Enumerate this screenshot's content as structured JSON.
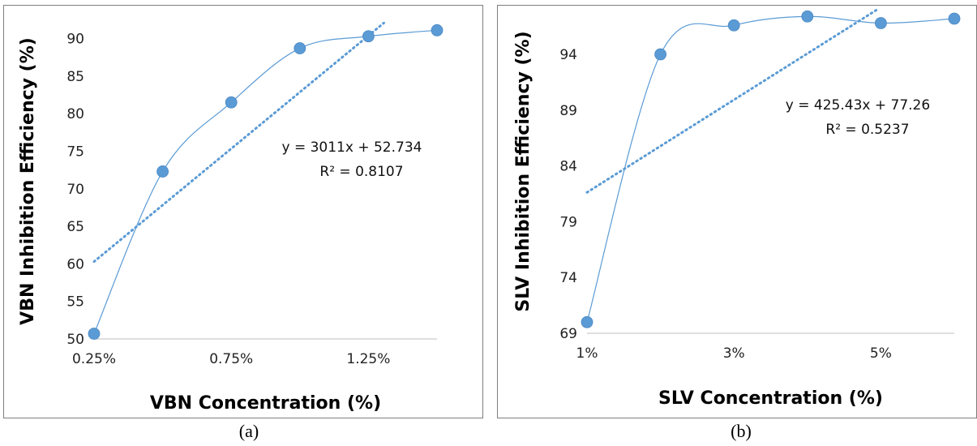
{
  "chart_data": [
    {
      "type": "scatter",
      "xlabel": "VBN Concentration (%)",
      "ylabel": "VBN Inhibition Efficiency (%)",
      "caption": "(a)",
      "x_tick_labels": [
        "0.25%",
        "0.75%",
        "1.25%"
      ],
      "y_ticks": [
        "50",
        "55",
        "60",
        "65",
        "70",
        "75",
        "80",
        "85",
        "90"
      ],
      "ylim": [
        50,
        92
      ],
      "xlim": [
        0.25,
        1.5
      ],
      "x": [
        0.25,
        0.5,
        0.75,
        1.0,
        1.25,
        1.5
      ],
      "y": [
        50.7,
        72.3,
        81.5,
        88.7,
        90.3,
        91.1
      ],
      "trendline": {
        "type": "linear",
        "style": "dotted",
        "slope": 3011,
        "intercept": 52.734,
        "equation": "y = 3011x + 52.734",
        "r2": "R² = 0.8107"
      },
      "marker_color": "#5b9bd5",
      "line_color": "#5b9bd5"
    },
    {
      "type": "scatter",
      "xlabel": "SLV Concentration (%)",
      "ylabel": "SLV Inhibition Efficiency (%)",
      "caption": "(b)",
      "x_tick_labels": [
        "1%",
        "3%",
        "5%"
      ],
      "y_ticks": [
        "69",
        "74",
        "79",
        "84",
        "89",
        "94"
      ],
      "ylim": [
        69,
        98
      ],
      "xlim": [
        1,
        6
      ],
      "x": [
        1,
        2,
        3,
        4,
        5,
        6
      ],
      "y": [
        70.0,
        94.0,
        96.6,
        97.4,
        96.8,
        97.2
      ],
      "trendline": {
        "type": "linear",
        "style": "dotted",
        "slope": 425.43,
        "intercept": 77.26,
        "equation": "y = 425.43x + 77.26",
        "r2": "R² = 0.5237"
      },
      "marker_color": "#5b9bd5",
      "line_color": "#5b9bd5"
    }
  ]
}
